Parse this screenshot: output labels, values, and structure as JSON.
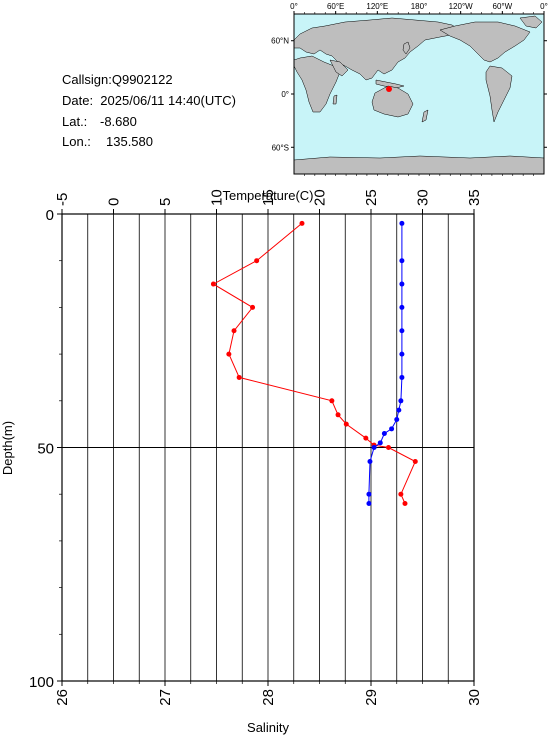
{
  "station": {
    "callsign": "Callsign:Q9902122",
    "date": "Date:  2025/06/11 14:40(UTC)",
    "lat_label": "Lat.:",
    "lat_value": "-8.680",
    "lon_label": "Lon.:",
    "lon_value": "135.580"
  },
  "map": {
    "top_ticks": [
      "0°",
      "60°E",
      "120°E",
      "180°",
      "120°W",
      "60°W",
      "0°"
    ],
    "side_ticks": [
      "60°N",
      "0°",
      "60°S"
    ],
    "ocean_color": "#c8f4f8",
    "land_color": "#bebebe",
    "marker_color": "#ff0000"
  },
  "chart_data": {
    "type": "line",
    "y_axis": {
      "label": "Depth(m)",
      "range": [
        0,
        100
      ],
      "ticks": [
        "0",
        "50",
        "100"
      ],
      "reversed": true
    },
    "x_top_axis": {
      "label": "Temperature(C)",
      "range": [
        -5,
        35
      ],
      "ticks": [
        "-5",
        "0",
        "5",
        "10",
        "15",
        "20",
        "25",
        "30",
        "35"
      ]
    },
    "x_bottom_axis": {
      "label": "Salinity",
      "range": [
        26,
        30
      ],
      "ticks": [
        "26",
        "27",
        "28",
        "29",
        "30"
      ]
    },
    "grid": {
      "vertical": true,
      "horizontal_at": [
        50
      ]
    },
    "series": [
      {
        "axis": "temperature",
        "color": "#ff0000",
        "points": [
          {
            "value": 18.3,
            "depth": 2
          },
          {
            "value": 13.9,
            "depth": 10
          },
          {
            "value": 9.7,
            "depth": 15
          },
          {
            "value": 13.5,
            "depth": 20
          },
          {
            "value": 11.7,
            "depth": 25
          },
          {
            "value": 11.2,
            "depth": 30
          },
          {
            "value": 12.2,
            "depth": 35
          },
          {
            "value": 21.2,
            "depth": 40
          },
          {
            "value": 21.8,
            "depth": 43
          },
          {
            "value": 22.6,
            "depth": 45
          },
          {
            "value": 24.5,
            "depth": 48
          },
          {
            "value": 25.3,
            "depth": 49.5
          },
          {
            "value": 26.7,
            "depth": 50
          },
          {
            "value": 29.3,
            "depth": 53
          },
          {
            "value": 27.9,
            "depth": 60
          },
          {
            "value": 28.3,
            "depth": 62
          }
        ]
      },
      {
        "axis": "salinity",
        "color": "#0000ff",
        "points": [
          {
            "value": 29.3,
            "depth": 2
          },
          {
            "value": 29.3,
            "depth": 10
          },
          {
            "value": 29.3,
            "depth": 15
          },
          {
            "value": 29.3,
            "depth": 20
          },
          {
            "value": 29.3,
            "depth": 25
          },
          {
            "value": 29.3,
            "depth": 30
          },
          {
            "value": 29.3,
            "depth": 35
          },
          {
            "value": 29.29,
            "depth": 40
          },
          {
            "value": 29.27,
            "depth": 42
          },
          {
            "value": 29.25,
            "depth": 44
          },
          {
            "value": 29.2,
            "depth": 46
          },
          {
            "value": 29.13,
            "depth": 47
          },
          {
            "value": 29.09,
            "depth": 49
          },
          {
            "value": 29.03,
            "depth": 50
          },
          {
            "value": 28.99,
            "depth": 53
          },
          {
            "value": 28.98,
            "depth": 60
          },
          {
            "value": 28.98,
            "depth": 62
          }
        ]
      }
    ]
  }
}
